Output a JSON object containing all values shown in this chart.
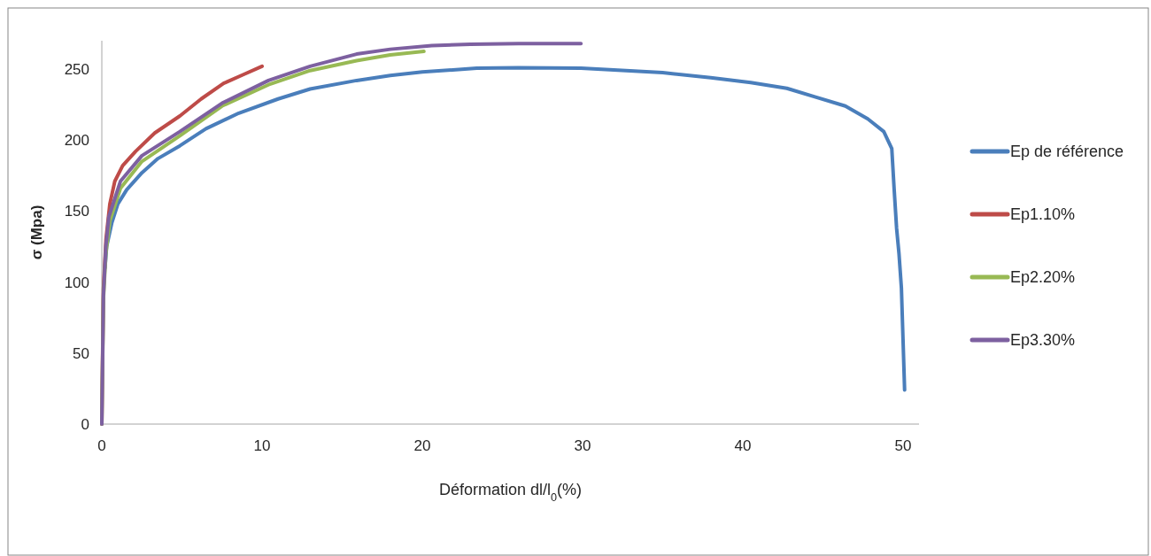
{
  "chart_data": {
    "type": "line",
    "xlabel": "Déformation dl/l$_{0}$(%)",
    "ylabel": "σ (Mpa)",
    "xlim": [
      0,
      51
    ],
    "xticks": [
      0,
      10,
      20,
      30,
      40,
      50
    ],
    "ylim": [
      0,
      270
    ],
    "yticks": [
      0,
      50,
      100,
      150,
      200,
      250
    ],
    "grid": false,
    "legend": "right",
    "marker": "none",
    "line_style": "solid",
    "series": [
      {
        "name": "Ep de référence",
        "color": "#4a7ebb",
        "x": [
          0.2,
          0.3,
          0.63,
          1.0,
          1.55,
          2.5,
          3.5,
          4.87,
          6.5,
          8.55,
          11,
          13,
          15.9,
          18,
          20,
          23.4,
          26,
          29.9,
          31.7,
          35,
          38,
          40.5,
          42.75,
          44.5,
          46.4,
          47.8,
          48.8,
          49.3,
          49.45,
          49.6,
          49.75,
          49.9,
          50,
          50.1
        ],
        "values": [
          110,
          125,
          142,
          155,
          165,
          177,
          187,
          196,
          208,
          219,
          229,
          236,
          242,
          245.5,
          248,
          250.6,
          251,
          250.6,
          249.6,
          247.5,
          244,
          240.5,
          236.5,
          230.5,
          224,
          215,
          206,
          194,
          165,
          138,
          120,
          96,
          60,
          24
        ]
      },
      {
        "name": "Ep1.10%",
        "color": "#be4b48",
        "x": [
          0,
          0.05,
          0.1,
          0.26,
          0.5,
          0.81,
          1.3,
          2.1,
          3.3,
          4.87,
          6.2,
          7.6,
          8.8,
          10.0
        ],
        "values": [
          0,
          50,
          95,
          130,
          155,
          171,
          182,
          192,
          205,
          217,
          229,
          240,
          246,
          252
        ]
      },
      {
        "name": "Ep2.20%",
        "color": "#98b954",
        "x": [
          0,
          0.05,
          0.1,
          0.25,
          0.5,
          1.16,
          2.5,
          4.87,
          7.5,
          10.4,
          13,
          15.9,
          18,
          20.1
        ],
        "values": [
          0,
          45,
          88,
          120,
          143,
          166,
          185,
          203,
          224,
          239,
          249,
          256,
          260,
          262.5
        ]
      },
      {
        "name": "Ep3.30%",
        "color": "#7d60a0",
        "x": [
          0,
          0.05,
          0.1,
          0.25,
          0.44,
          1.16,
          2.5,
          4.87,
          7.5,
          10.4,
          13,
          15.9,
          18,
          20.6,
          23,
          26,
          29.9
        ],
        "values": [
          0,
          45,
          90,
          125,
          146,
          171,
          189,
          206,
          226,
          242,
          252,
          260.6,
          264,
          266.6,
          267.5,
          268,
          268
        ]
      }
    ]
  }
}
